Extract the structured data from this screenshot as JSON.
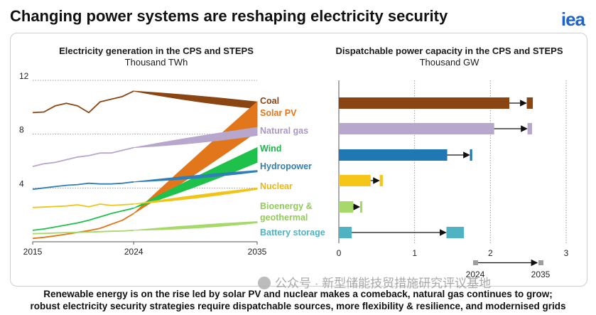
{
  "page": {
    "title": "Changing power systems are reshaping electricity security",
    "logo": "iea",
    "footer_line1": "Renewable energy is on the rise led by solar PV and nuclear makes a comeback, natural gas continues to grow;",
    "footer_line2": "robust electricity security strategies require dispatchable sources, more flexibility & resilience, and modernised grids",
    "watermark": "公众号 · 新型储能技贸措施研究评议基地"
  },
  "chart_data": [
    {
      "type": "line",
      "title": "Electricity generation in the CPS and STEPS",
      "subtitle": "Thousand TWh",
      "xlabel": "",
      "ylabel": "",
      "xlim": [
        2015,
        2035
      ],
      "ylim": [
        0,
        12
      ],
      "x_ticks": [
        "2015",
        "2024",
        "2035"
      ],
      "y_ticks": [
        "4",
        "8",
        "12"
      ],
      "grid": "dotted horizontal",
      "series": [
        {
          "name": "Coal",
          "color": "#8b4513",
          "x": [
            2015,
            2016,
            2017,
            2018,
            2019,
            2020,
            2021,
            2022,
            2023,
            2024
          ],
          "values": [
            9.6,
            9.65,
            10.1,
            10.3,
            10.1,
            9.6,
            10.4,
            10.6,
            10.8,
            11.2
          ],
          "band_2035": [
            9.9,
            10.4
          ]
        },
        {
          "name": "Solar PV",
          "color": "#e2761b",
          "x": [
            2015,
            2016,
            2017,
            2018,
            2019,
            2020,
            2021,
            2022,
            2023,
            2024
          ],
          "values": [
            0.25,
            0.33,
            0.44,
            0.56,
            0.7,
            0.83,
            1.0,
            1.3,
            1.6,
            2.1
          ],
          "band_2035": [
            8.2,
            10.4
          ]
        },
        {
          "name": "Natural gas",
          "color": "#b7a7cc",
          "x": [
            2015,
            2016,
            2017,
            2018,
            2019,
            2020,
            2021,
            2022,
            2023,
            2024
          ],
          "values": [
            5.6,
            5.8,
            5.9,
            6.1,
            6.3,
            6.4,
            6.6,
            6.6,
            6.8,
            7.0
          ],
          "band_2035": [
            7.9,
            8.5
          ]
        },
        {
          "name": "Wind",
          "color": "#1ec24a",
          "x": [
            2015,
            2016,
            2017,
            2018,
            2019,
            2020,
            2021,
            2022,
            2023,
            2024
          ],
          "values": [
            0.85,
            0.95,
            1.1,
            1.25,
            1.4,
            1.6,
            1.85,
            2.1,
            2.3,
            2.5
          ],
          "band_2035": [
            5.9,
            7.0
          ]
        },
        {
          "name": "Hydropower",
          "color": "#2f7fb8",
          "x": [
            2015,
            2016,
            2017,
            2018,
            2019,
            2020,
            2021,
            2022,
            2023,
            2024
          ],
          "values": [
            3.9,
            4.0,
            4.1,
            4.2,
            4.25,
            4.35,
            4.3,
            4.3,
            4.35,
            4.45
          ],
          "band_2035": [
            5.2,
            5.3
          ]
        },
        {
          "name": "Nuclear",
          "color": "#f0c419",
          "x": [
            2015,
            2016,
            2017,
            2018,
            2019,
            2020,
            2021,
            2022,
            2023,
            2024
          ],
          "values": [
            2.55,
            2.58,
            2.62,
            2.66,
            2.75,
            2.6,
            2.8,
            2.7,
            2.75,
            2.8
          ],
          "band_2035": [
            3.9,
            4.0
          ]
        },
        {
          "name": "Bioenergy & geothermal",
          "color": "#a6d96a",
          "x": [
            2015,
            2016,
            2017,
            2018,
            2019,
            2020,
            2021,
            2022,
            2023,
            2024
          ],
          "values": [
            0.6,
            0.62,
            0.65,
            0.68,
            0.7,
            0.72,
            0.75,
            0.78,
            0.8,
            0.85
          ],
          "band_2035": [
            1.4,
            1.5
          ]
        },
        {
          "name": "Battery storage",
          "color": "#4fb3c4"
        }
      ]
    },
    {
      "type": "bar",
      "title": "Dispatchable power capacity in the CPS and STEPS",
      "subtitle": "Thousand GW",
      "xlim": [
        0,
        3
      ],
      "x_ticks": [
        "0",
        "1",
        "2",
        "3"
      ],
      "categories": [
        "Coal",
        "Natural gas",
        "Hydropower",
        "Nuclear",
        "Bioenergy & geothermal",
        "Battery storage"
      ],
      "values_2024": [
        2.25,
        2.05,
        1.43,
        0.42,
        0.19,
        0.17
      ],
      "values_2035": [
        2.48,
        2.49,
        1.73,
        0.54,
        0.28,
        1.42
      ],
      "values_2035_upper": [
        2.56,
        2.55,
        1.76,
        0.58,
        0.31,
        1.65
      ],
      "colors": [
        "#8b4513",
        "#b7a7cc",
        "#1f77b4",
        "#f5c518",
        "#a6d96a",
        "#4fb3c4"
      ],
      "legend": {
        "from": "2024",
        "to": "2035"
      }
    }
  ],
  "labels": {
    "coal": "Coal",
    "solar": "Solar PV",
    "gas": "Natural gas",
    "wind": "Wind",
    "hydro": "Hydropower",
    "nuclear": "Nuclear",
    "bio1": "Bioenergy &",
    "bio2": "geothermal",
    "battery": "Battery storage"
  }
}
